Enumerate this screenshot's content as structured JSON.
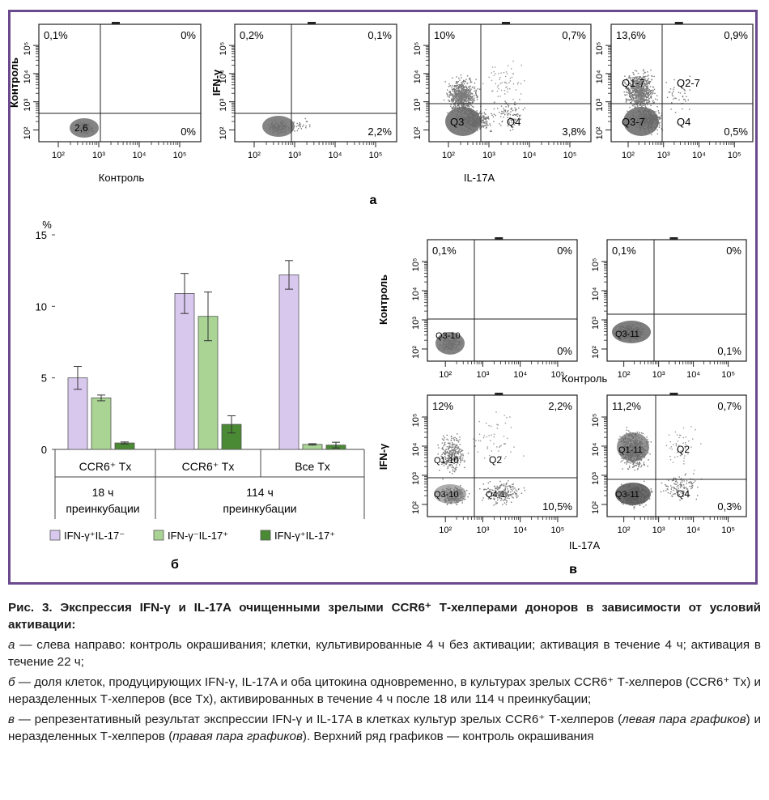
{
  "panel_a": {
    "letter": "а",
    "xlabel_control": "Контроль",
    "ylabel_control": "Контроль",
    "ylabel_ifn": "IFN-γ",
    "xlabel_il17": "IL-17A",
    "plots": [
      {
        "q_ul": "0,1%",
        "q_ur": "0%",
        "q_lr": "0%",
        "extra": [
          "2,6"
        ]
      },
      {
        "q_ul": "0,2%",
        "q_ur": "0,1%",
        "q_lr": "2,2%",
        "extra": []
      },
      {
        "q_ul": "10%",
        "q_ur": "0,7%",
        "q_lr": "3,8%",
        "extra": [
          "Q3",
          "Q4"
        ]
      },
      {
        "q_ul": "13,6%",
        "q_ur": "0,9%",
        "q_lr": "0,5%",
        "extra": [
          "Q1-7",
          "Q2-7",
          "Q3-7",
          "Q4"
        ]
      }
    ]
  },
  "panel_b": {
    "letter": "б",
    "ylabel": "%",
    "legend": [
      {
        "label": "IFN-γ⁺IL-17⁻",
        "color": "#d9c8ee"
      },
      {
        "label": "IFN-γ⁻IL-17⁺",
        "color": "#a9d494"
      },
      {
        "label": "IFN-γ⁺IL-17⁺",
        "color": "#4a8a34"
      }
    ],
    "group_labels": [
      "CCR6⁺ Tx",
      "CCR6⁺ Tx",
      "Все Tx"
    ],
    "time_labels": [
      {
        "line1": "18 ч",
        "line2": "преинкубации"
      },
      {
        "line1": "114 ч",
        "line2": "преинкубации"
      }
    ]
  },
  "chart_data": {
    "type": "bar",
    "categories": [
      "CCR6⁺ Tx",
      "CCR6⁺ Tx",
      "Все Tx"
    ],
    "series": [
      {
        "name": "IFN-γ⁺IL-17⁻",
        "values": [
          5.0,
          10.9,
          12.2
        ],
        "errors": [
          0.8,
          1.4,
          1.0
        ]
      },
      {
        "name": "IFN-γ⁻IL-17⁺",
        "values": [
          3.6,
          9.3,
          0.35
        ],
        "errors": [
          0.2,
          1.7,
          0.05
        ]
      },
      {
        "name": "IFN-γ⁺IL-17⁺",
        "values": [
          0.45,
          1.75,
          0.3
        ],
        "errors": [
          0.07,
          0.6,
          0.2
        ]
      }
    ],
    "ylabel": "%",
    "ylim": [
      0,
      15
    ],
    "yticks": [
      0,
      5,
      10,
      15
    ],
    "legend_position": "bottom"
  },
  "panel_v": {
    "letter": "в",
    "ylabel_control": "Контроль",
    "ylabel_ifn": "IFN-γ",
    "xlabel_control": "Контроль",
    "xlabel_il17": "IL-17A",
    "plots": [
      {
        "q_ul": "0,1%",
        "q_ur": "0%",
        "q_lr": "0%",
        "extra": [
          "Q3-10"
        ]
      },
      {
        "q_ul": "0,1%",
        "q_ur": "0%",
        "q_lr": "0,1%",
        "extra": [
          "Q3-11"
        ]
      },
      {
        "q_ul": "12%",
        "q_ur": "2,2%",
        "q_lr": "10,5%",
        "extra": [
          "Q1-10",
          "Q2",
          "Q3-10",
          "Q4-1"
        ]
      },
      {
        "q_ul": "11,2%",
        "q_ur": "0,7%",
        "q_lr": "0,3%",
        "extra": [
          "Q1-11",
          "Q2",
          "Q3-11",
          "Q4"
        ]
      }
    ]
  },
  "axis": {
    "tick_labels": [
      "10²",
      "10³",
      "10⁴",
      "10⁵"
    ]
  },
  "caption": {
    "title": "Рис. 3. Экспрессия IFN-γ и IL-17A очищенными зрелыми CCR6⁺ Т-хелперами доноров в зависимости от условий активации:",
    "a_letter": "а",
    "a_text": " — слева направо: контроль окрашивания; клетки, культивированные 4 ч без активации; активация в течение 4 ч; активация в течение 22 ч;",
    "b_letter": "б",
    "b_text": " — доля клеток, продуцирующих IFN-γ, IL-17A и оба цитокина одновременно, в культурах зрелых CCR6⁺ Т-хелперов (CCR6⁺ Tx) и неразделенных Т-хелперов (все Tx), активированных в течение 4 ч после 18 или 114 ч преинкубации;",
    "v_letter": "в",
    "v_text_1": " — репрезентативный результат экспрессии IFN-γ и IL-17A в клетках культур зрелых CCR6⁺ Т-хелперов (",
    "v_italic_1": "левая пара графиков",
    "v_text_2": ") и неразделенных Т-хелперов (",
    "v_italic_2": "правая пара графиков",
    "v_text_3": "). Верхний ряд графиков — контроль окрашивания"
  }
}
